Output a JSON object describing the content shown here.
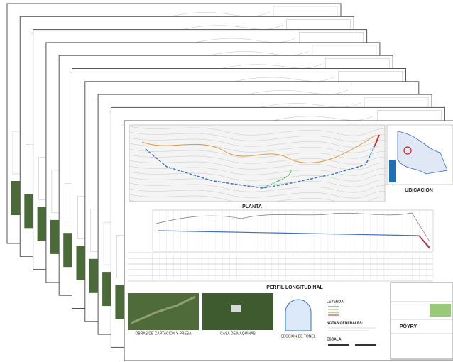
{
  "plan": {
    "title": "PLANTA",
    "location_title": "UBICACION"
  },
  "profile": {
    "title": "PERFIL LONGITUDINAL"
  },
  "photos": [
    {
      "caption": "OBRAS DE CAPTACION Y PRESA"
    },
    {
      "caption": "CASA DE MAQUINAS"
    }
  ],
  "tunnel": {
    "caption": "SECCION DE TONEL"
  },
  "legend": {
    "title": "LEYENDA:"
  },
  "notes": {
    "title": "NOTAS GENERALES:"
  },
  "scale": {
    "title": "ESCALA"
  },
  "title_block": {
    "logo": "PÖYRY"
  }
}
